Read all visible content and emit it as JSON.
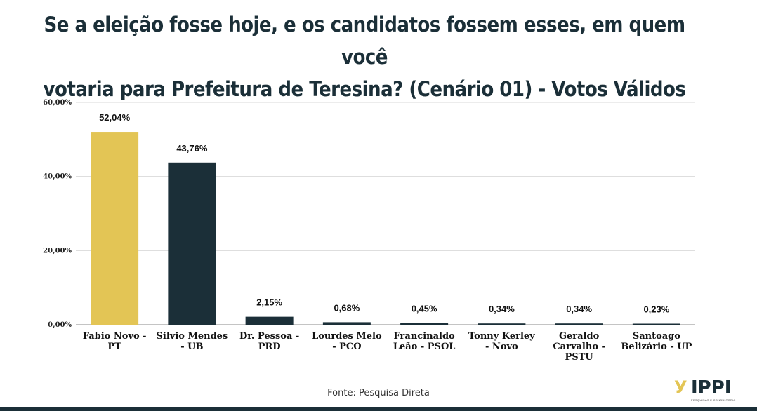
{
  "title": {
    "line1": "Se a eleição fosse hoje, e os candidatos fossem esses, em quem você",
    "line2": "votaria para Prefeitura de Teresina? (Cenário 01) - Votos Válidos"
  },
  "source": "Fonte: Pesquisa Direta",
  "logo": {
    "name": "IPPI",
    "tagline": "PESQUISAS E CONSULTORIA"
  },
  "colors": {
    "gold": "#e3c555",
    "dark": "#1b2f38",
    "grid": "#d9d9d9"
  },
  "chart_data": {
    "type": "bar",
    "title": "Se a eleição fosse hoje, e os candidatos fossem esses, em quem você votaria para Prefeitura de Teresina? (Cenário 01) - Votos Válidos",
    "categories": [
      "Fabio Novo - PT",
      "Silvio Mendes - UB",
      "Dr. Pessoa - PRD",
      "Lourdes Melo - PCO",
      "Francinaldo Leão - PSOL",
      "Tonny Kerley - Novo",
      "Geraldo Carvalho - PSTU",
      "Santoago Belizário - UP"
    ],
    "category_lines": [
      [
        "Fabio Novo -",
        "PT"
      ],
      [
        "Silvio Mendes",
        "- UB"
      ],
      [
        "Dr. Pessoa -",
        "PRD"
      ],
      [
        "Lourdes Melo",
        "- PCO"
      ],
      [
        "Francinaldo",
        "Leão - PSOL"
      ],
      [
        "Tonny Kerley",
        "- Novo"
      ],
      [
        "Geraldo",
        "Carvalho -",
        "PSTU"
      ],
      [
        "Santoago",
        "Belizário - UP"
      ]
    ],
    "values": [
      52.04,
      43.76,
      2.15,
      0.68,
      0.45,
      0.34,
      0.34,
      0.23
    ],
    "data_labels": [
      "52,04%",
      "43,76%",
      "2,15%",
      "0,68%",
      "0,45%",
      "0,34%",
      "0,34%",
      "0,23%"
    ],
    "bar_colors": [
      "#e3c555",
      "#1b2f38",
      "#1b2f38",
      "#1b2f38",
      "#1b2f38",
      "#1b2f38",
      "#1b2f38",
      "#1b2f38"
    ],
    "ylim": [
      0,
      60
    ],
    "yticks": [
      0,
      20,
      40,
      60
    ],
    "ytick_labels": [
      "0,00%",
      "20,00%",
      "40,00%",
      "60,00%"
    ],
    "xlabel": "",
    "ylabel": "",
    "grid": true,
    "legend": "none"
  }
}
